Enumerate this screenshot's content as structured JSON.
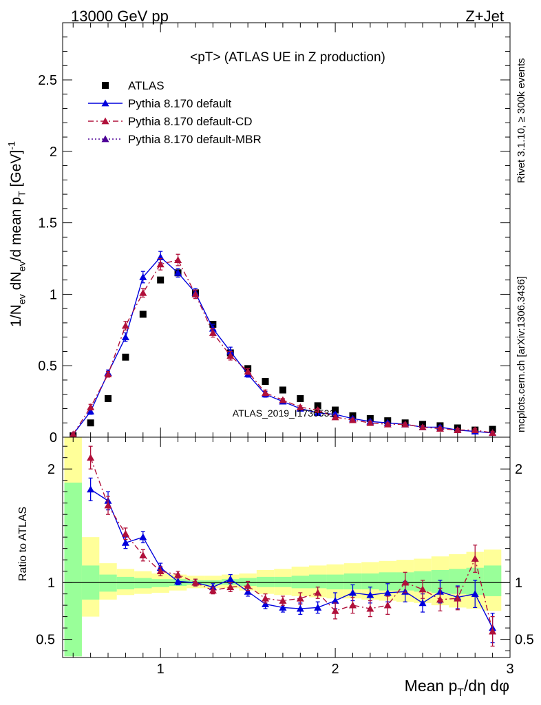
{
  "header": {
    "left": "13000 GeV pp",
    "right": "Z+Jet"
  },
  "side": {
    "top": "Rivet 3.1.10, ≥ 300k events",
    "bottom": "mcplots.cern.ch [arXiv:1306.3436]"
  },
  "watermark": "ATLAS_2019_I1736531",
  "chart_data": [
    {
      "type": "scatter",
      "title": "<pT> (ATLAS UE in Z production)",
      "ylabel": "1/N_ev dN_ev/d mean p_T [GeV]^-1",
      "xlim": [
        0.44,
        3.0
      ],
      "ylim": [
        0,
        2.9
      ],
      "y_ticks": [
        0,
        0.5,
        1,
        1.5,
        2,
        2.5
      ],
      "y_tick_labels": [
        "0",
        "0.5",
        "1",
        "1.5",
        "2",
        "2.5"
      ],
      "x": [
        0.5,
        0.6,
        0.7,
        0.8,
        0.9,
        1.0,
        1.1,
        1.2,
        1.3,
        1.4,
        1.5,
        1.6,
        1.7,
        1.8,
        1.9,
        2.0,
        2.1,
        2.2,
        2.3,
        2.4,
        2.5,
        2.6,
        2.7,
        2.8,
        2.9
      ],
      "legend": {
        "placement": "top-left"
      },
      "series": [
        {
          "name": "ATLAS",
          "color": "#000000",
          "marker": "square",
          "values": [
            0.01,
            0.1,
            0.27,
            0.56,
            0.86,
            1.1,
            1.15,
            1.01,
            0.79,
            0.59,
            0.48,
            0.39,
            0.33,
            0.27,
            0.22,
            0.19,
            0.15,
            0.13,
            0.115,
            0.1,
            0.09,
            0.08,
            0.065,
            0.05,
            0.055
          ]
        },
        {
          "name": "Pythia 8.170 default",
          "color": "#0000dd",
          "marker": "triangle",
          "line": "solid",
          "values": [
            0.02,
            0.18,
            0.45,
            0.7,
            1.12,
            1.26,
            1.15,
            1.01,
            0.76,
            0.6,
            0.44,
            0.3,
            0.25,
            0.2,
            0.17,
            0.16,
            0.13,
            0.11,
            0.1,
            0.09,
            0.07,
            0.07,
            0.05,
            0.04,
            0.03
          ],
          "errors": [
            0.01,
            0.02,
            0.02,
            0.03,
            0.04,
            0.04,
            0.03,
            0.03,
            0.03,
            0.03,
            0.02,
            0.02,
            0.01,
            0.01,
            0.01,
            0.01,
            0.01,
            0.01,
            0.01,
            0.01,
            0.01,
            0.01,
            0.01,
            0.01,
            0.01
          ]
        },
        {
          "name": "Pythia 8.170 default-CD",
          "color": "#b0103a",
          "marker": "triangle",
          "line": "dashdot",
          "values": [
            0.02,
            0.21,
            0.44,
            0.78,
            1.01,
            1.21,
            1.24,
            1.0,
            0.73,
            0.57,
            0.46,
            0.31,
            0.26,
            0.21,
            0.19,
            0.14,
            0.12,
            0.1,
            0.09,
            0.09,
            0.07,
            0.06,
            0.05,
            0.05,
            0.03
          ],
          "errors": [
            0.01,
            0.02,
            0.02,
            0.03,
            0.03,
            0.04,
            0.04,
            0.03,
            0.03,
            0.03,
            0.02,
            0.02,
            0.01,
            0.01,
            0.01,
            0.01,
            0.01,
            0.01,
            0.01,
            0.01,
            0.01,
            0.01,
            0.01,
            0.01,
            0.01
          ]
        },
        {
          "name": "Pythia 8.170 default-MBR",
          "color": "#4b0096",
          "marker": "triangle",
          "line": "dotted",
          "values": []
        }
      ]
    },
    {
      "type": "line",
      "ylabel": "Ratio to ATLAS",
      "xlabel": "Mean p_T/dη dφ",
      "xlim": [
        0.44,
        3.0
      ],
      "ylim": [
        0.34,
        2.28
      ],
      "x_ticks": [
        1,
        2,
        3
      ],
      "x_tick_labels": [
        "1",
        "2",
        "3"
      ],
      "y_ticks": [
        0.5,
        1,
        2
      ],
      "y_tick_labels": [
        "0.5",
        "1",
        "2"
      ],
      "reference_line": 1,
      "bin_edges": [
        0.45,
        0.55,
        0.65,
        0.75,
        0.85,
        0.95,
        1.05,
        1.15,
        1.25,
        1.35,
        1.45,
        1.55,
        1.65,
        1.75,
        1.85,
        1.95,
        2.05,
        2.15,
        2.25,
        2.35,
        2.45,
        2.55,
        2.65,
        2.75,
        2.85,
        2.95
      ],
      "bands": [
        {
          "name": "1 sigma",
          "color": "#99ff99",
          "lower": [
            0.35,
            0.85,
            0.92,
            0.94,
            0.95,
            0.96,
            0.97,
            0.98,
            0.98,
            0.98,
            0.97,
            0.96,
            0.96,
            0.95,
            0.95,
            0.94,
            0.94,
            0.94,
            0.93,
            0.93,
            0.92,
            0.91,
            0.9,
            0.89,
            0.88
          ],
          "upper": [
            1.88,
            1.15,
            1.07,
            1.05,
            1.04,
            1.03,
            1.03,
            1.02,
            1.02,
            1.03,
            1.04,
            1.05,
            1.05,
            1.06,
            1.07,
            1.07,
            1.08,
            1.08,
            1.09,
            1.09,
            1.1,
            1.11,
            1.12,
            1.13,
            1.15
          ]
        },
        {
          "name": "2 sigma",
          "color": "#ffff99",
          "lower": [
            0.35,
            0.7,
            0.85,
            0.89,
            0.9,
            0.91,
            0.93,
            0.95,
            0.95,
            0.95,
            0.93,
            0.9,
            0.89,
            0.88,
            0.87,
            0.86,
            0.86,
            0.85,
            0.84,
            0.83,
            0.82,
            0.8,
            0.78,
            0.77,
            0.75
          ],
          "upper": [
            2.28,
            1.4,
            1.17,
            1.12,
            1.1,
            1.08,
            1.07,
            1.06,
            1.06,
            1.07,
            1.08,
            1.11,
            1.12,
            1.14,
            1.15,
            1.16,
            1.17,
            1.18,
            1.19,
            1.2,
            1.21,
            1.23,
            1.25,
            1.27,
            1.29
          ]
        }
      ],
      "series": [
        {
          "name": "Pythia 8.170 default",
          "color": "#0000dd",
          "x": [
            0.6,
            0.7,
            0.8,
            0.9,
            1.0,
            1.1,
            1.2,
            1.3,
            1.4,
            1.5,
            1.6,
            1.7,
            1.8,
            1.9,
            2.0,
            2.1,
            2.2,
            2.3,
            2.4,
            2.5,
            2.6,
            2.7,
            2.8,
            2.9
          ],
          "values": [
            1.82,
            1.72,
            1.35,
            1.4,
            1.13,
            1.01,
            1.0,
            0.96,
            1.03,
            0.92,
            0.81,
            0.78,
            0.77,
            0.78,
            0.84,
            0.91,
            0.89,
            0.91,
            0.92,
            0.82,
            0.92,
            0.87,
            0.9,
            0.6
          ],
          "errors": [
            0.1,
            0.08,
            0.05,
            0.05,
            0.04,
            0.03,
            0.03,
            0.03,
            0.04,
            0.04,
            0.04,
            0.04,
            0.05,
            0.05,
            0.07,
            0.07,
            0.07,
            0.08,
            0.09,
            0.08,
            0.1,
            0.1,
            0.12,
            0.13
          ]
        },
        {
          "name": "Pythia 8.170 default-CD",
          "color": "#b0103a",
          "x": [
            0.6,
            0.7,
            0.8,
            0.9,
            1.0,
            1.1,
            1.2,
            1.3,
            1.4,
            1.5,
            1.6,
            1.7,
            1.8,
            1.9,
            2.0,
            2.1,
            2.2,
            2.3,
            2.4,
            2.5,
            2.6,
            2.7,
            2.8,
            2.9
          ],
          "values": [
            2.1,
            1.68,
            1.43,
            1.24,
            1.1,
            1.07,
            1.0,
            0.93,
            0.96,
            0.97,
            0.86,
            0.84,
            0.86,
            0.91,
            0.75,
            0.8,
            0.77,
            0.8,
            1.0,
            0.94,
            0.85,
            0.86,
            1.21,
            0.57
          ],
          "errors": [
            0.1,
            0.08,
            0.05,
            0.05,
            0.04,
            0.03,
            0.03,
            0.03,
            0.04,
            0.04,
            0.04,
            0.04,
            0.05,
            0.05,
            0.07,
            0.07,
            0.07,
            0.08,
            0.09,
            0.08,
            0.1,
            0.1,
            0.12,
            0.13
          ]
        }
      ]
    }
  ]
}
